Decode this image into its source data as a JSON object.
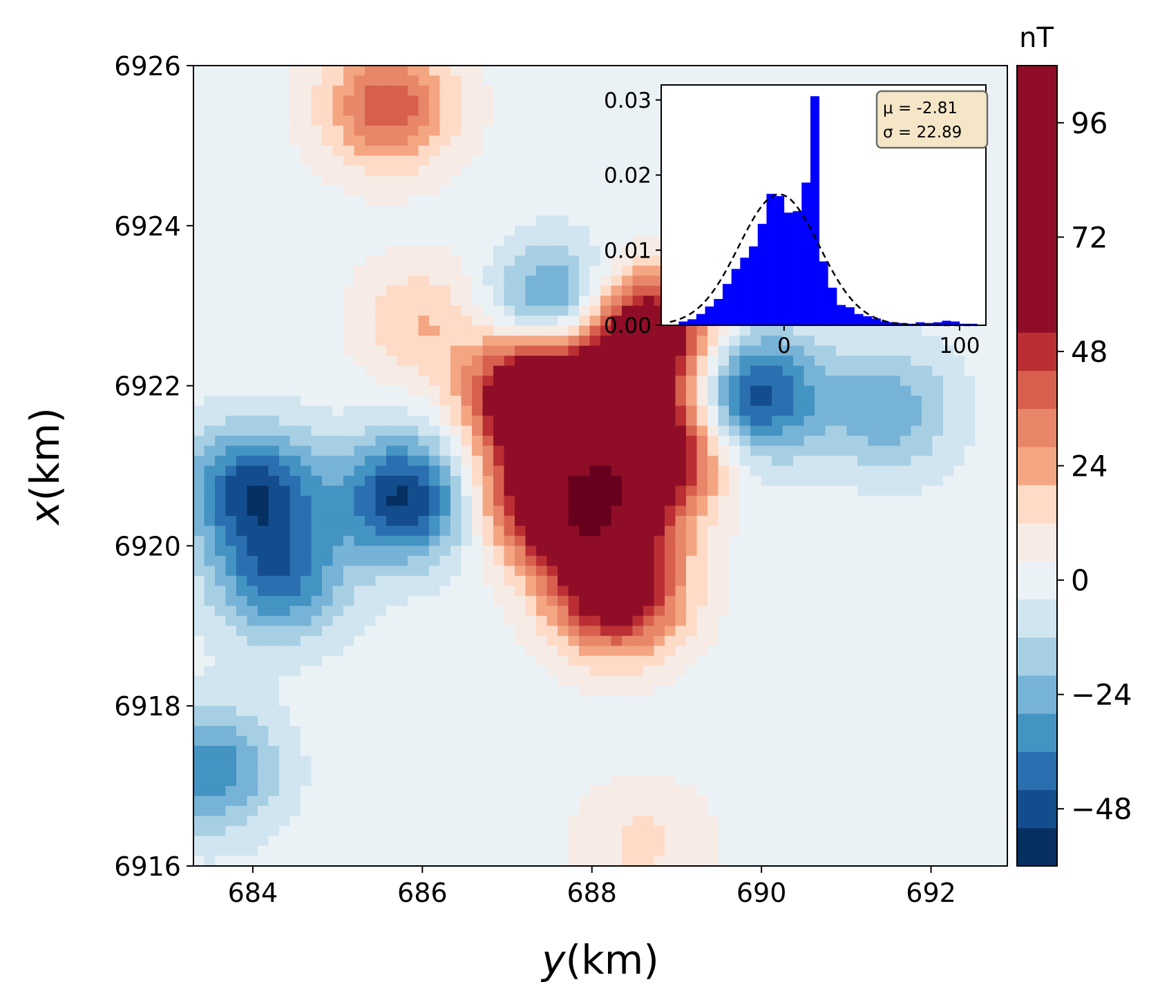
{
  "chart_data": [
    {
      "type": "heatmap",
      "subtype": "filled contour map",
      "xlabel_var": "y",
      "xlabel_unit": "(km)",
      "ylabel_var": "x",
      "ylabel_unit": "(km)",
      "xlim": [
        683.3,
        692.9
      ],
      "ylim": [
        6916,
        6926
      ],
      "xticks": [
        "684",
        "686",
        "688",
        "690",
        "692"
      ],
      "yticks": [
        "6916",
        "6918",
        "6920",
        "6922",
        "6924",
        "6926"
      ],
      "colormap": "RdBu_r",
      "colorbar": {
        "unit": "nT",
        "range": [
          -60,
          108
        ],
        "tick_labels": [
          "96",
          "72",
          "48",
          "24",
          "0",
          "−24",
          "−48"
        ],
        "tick_values": [
          96,
          72,
          48,
          24,
          0,
          -24,
          -48
        ],
        "level_step": 8,
        "level_boundaries": [
          -60,
          -52,
          -44,
          -36,
          -28,
          -20,
          -12,
          -4,
          4,
          12,
          20,
          28,
          36,
          44,
          52,
          108
        ],
        "band_colors": [
          "#053061",
          "#144d8d",
          "#2a6fb0",
          "#4393c3",
          "#77b3d6",
          "#a7cfe4",
          "#d1e5f0",
          "#ebf2f6",
          "#f7ebe6",
          "#fddbc7",
          "#f4a582",
          "#e8866a",
          "#d6604d",
          "#bb2f34",
          "#8f0d26",
          "#67001f"
        ]
      },
      "anomalies_nT": [
        {
          "y": 687.4,
          "x": 6921.9,
          "value": 100
        },
        {
          "y": 688.6,
          "x": 6922.6,
          "value": 85
        },
        {
          "y": 688.7,
          "x": 6921.2,
          "value": 75
        },
        {
          "y": 688.0,
          "x": 6920.4,
          "value": 78
        },
        {
          "y": 688.3,
          "x": 6919.4,
          "value": 62
        },
        {
          "y": 687.3,
          "x": 6920.7,
          "value": 40
        },
        {
          "y": 685.6,
          "x": 6925.5,
          "value": 42
        },
        {
          "y": 686.0,
          "x": 6922.8,
          "value": 20
        },
        {
          "y": 685.8,
          "x": 6920.6,
          "value": -54
        },
        {
          "y": 684.0,
          "x": 6920.7,
          "value": -48
        },
        {
          "y": 687.6,
          "x": 6922.9,
          "value": -46
        },
        {
          "y": 689.9,
          "x": 6921.9,
          "value": -50
        },
        {
          "y": 684.3,
          "x": 6919.6,
          "value": -38
        },
        {
          "y": 691.5,
          "x": 6921.7,
          "value": -26
        },
        {
          "y": 683.5,
          "x": 6917.2,
          "value": -34
        },
        {
          "y": 688.6,
          "x": 6916.3,
          "value": 14
        }
      ]
    },
    {
      "type": "bar",
      "subtype": "histogram with fitted normal curve",
      "xlim": [
        -70,
        115
      ],
      "ylim": [
        0,
        0.032
      ],
      "xticks": [
        "0",
        "100"
      ],
      "yticks": [
        "0.00",
        "0.01",
        "0.02",
        "0.03"
      ],
      "bins_start": -60,
      "bin_width": 5,
      "values": [
        0.0005,
        0.0008,
        0.0015,
        0.0025,
        0.0035,
        0.0055,
        0.0075,
        0.009,
        0.0105,
        0.0135,
        0.0175,
        0.0172,
        0.015,
        0.0152,
        0.019,
        0.0305,
        0.0085,
        0.005,
        0.0027,
        0.0024,
        0.0015,
        0.0012,
        0.0009,
        0.0005,
        0.0004,
        0.0003,
        0.0002,
        0.0004,
        0.0003,
        0.0004,
        0.0006,
        0.0005,
        0.0002,
        0.0002
      ],
      "bar_color": "#0000ff",
      "normal_fit": {
        "mu": -2.81,
        "sigma": 22.89,
        "style": "dashed"
      },
      "legend_box": {
        "line1": "μ = -2.81",
        "line2": "σ = 22.89",
        "placement": "top-right"
      }
    }
  ]
}
